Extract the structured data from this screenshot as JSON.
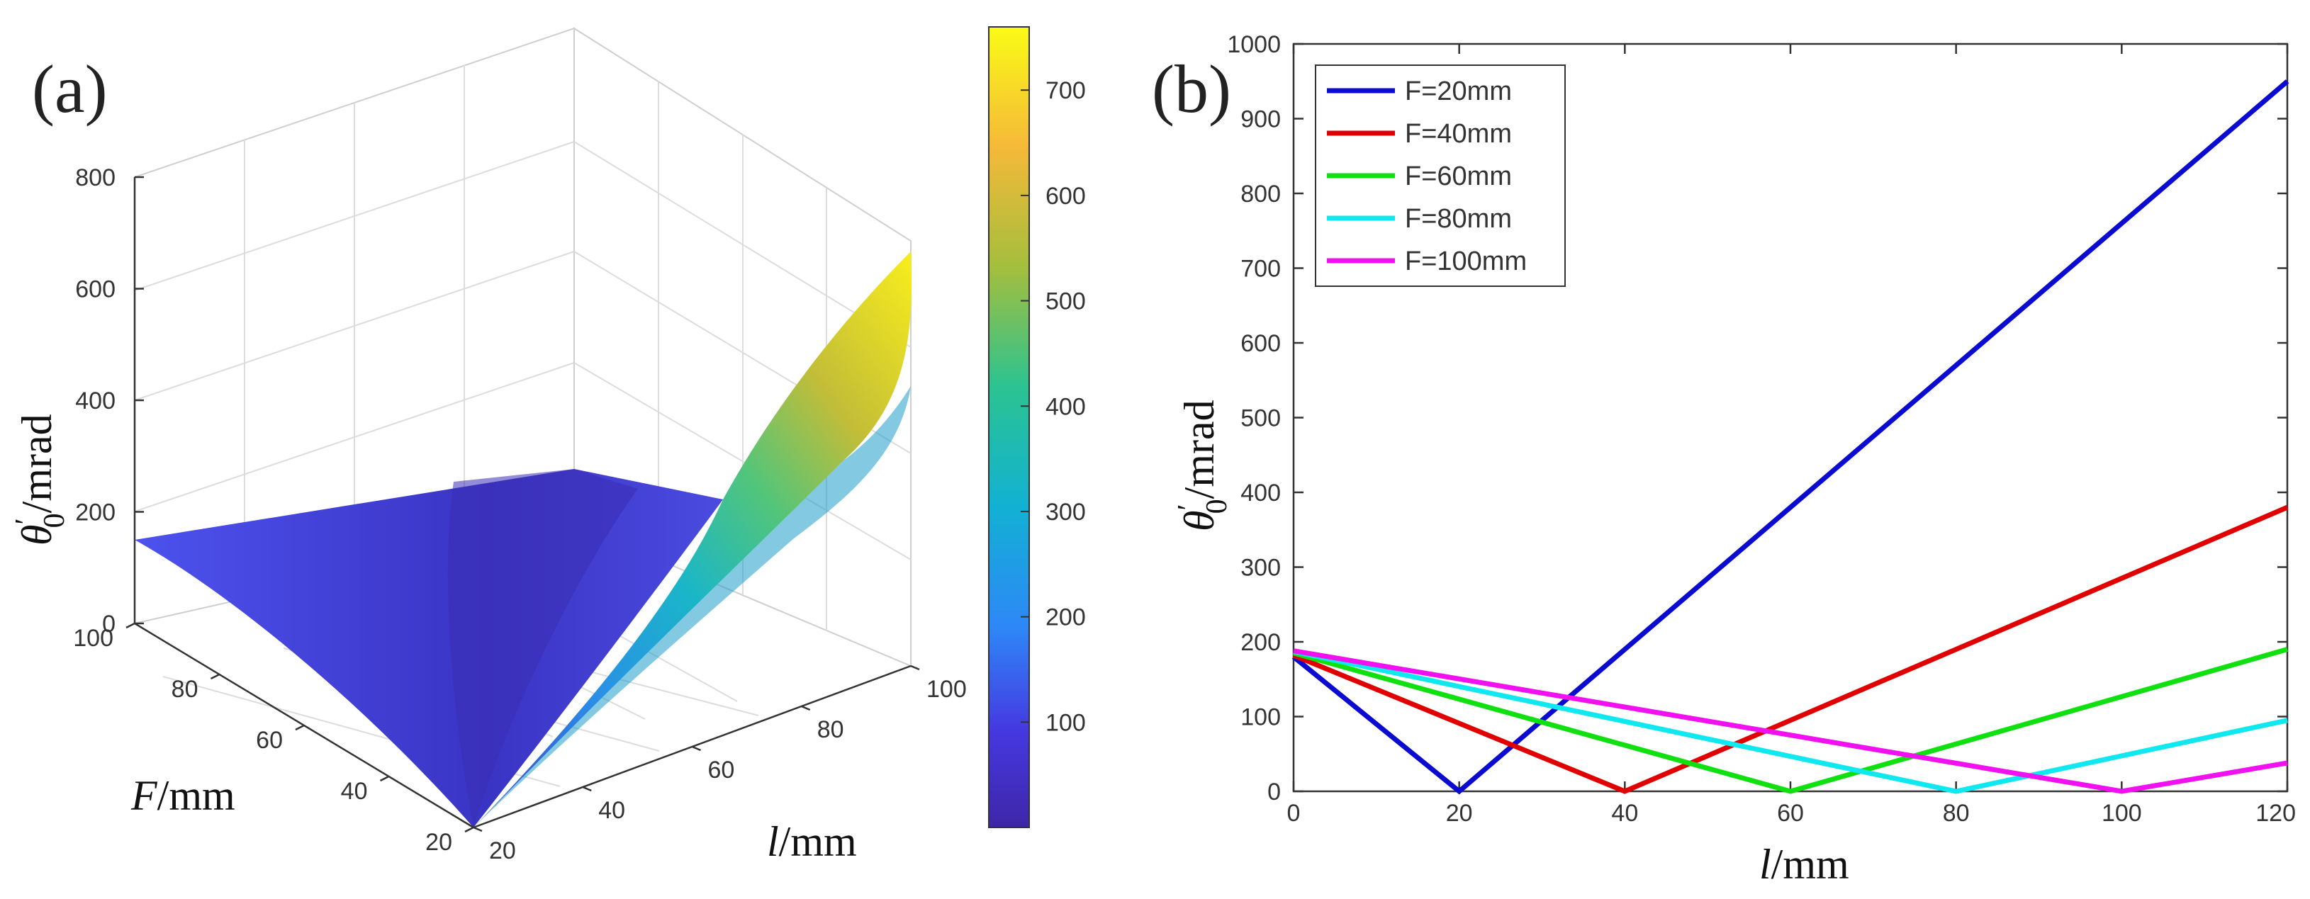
{
  "panel_a": {
    "label": "(a)",
    "axis_z": {
      "symbol": "θ",
      "sup": "′",
      "sub": "0",
      "unit": "/mrad"
    },
    "axis_f": {
      "symbol": "F",
      "unit": "/mm"
    },
    "axis_l": {
      "symbol": "l",
      "unit": "/mm"
    }
  },
  "panel_b": {
    "label": "(b)",
    "axis_y": {
      "symbol": "θ",
      "sup": "′",
      "sub": "0",
      "unit": "/mrad"
    },
    "axis_x": {
      "symbol": "l",
      "unit": "/mm"
    }
  },
  "chart_data": [
    {
      "type": "surface",
      "x_name": "l",
      "y_name": "F",
      "x_ticks": [
        20,
        40,
        60,
        80,
        100
      ],
      "y_ticks": [
        20,
        40,
        60,
        80,
        100
      ],
      "z_ticks": [
        0,
        200,
        400,
        600,
        800
      ],
      "xlim": [
        20,
        100
      ],
      "ylim": [
        20,
        100
      ],
      "zlim": [
        0,
        800
      ],
      "corner_values": [
        {
          "l": 20,
          "F": 20,
          "z": 0
        },
        {
          "l": 20,
          "F": 100,
          "z": 150
        },
        {
          "l": 100,
          "F": 100,
          "z": 0
        },
        {
          "l": 100,
          "F": 20,
          "z": 760
        }
      ],
      "colorbar": {
        "ticks": [
          100,
          200,
          300,
          400,
          500,
          600,
          700
        ],
        "range": [
          0,
          760
        ],
        "colormap": "parula"
      },
      "grid": true
    },
    {
      "type": "line",
      "xlim": [
        0,
        120
      ],
      "ylim": [
        0,
        1000
      ],
      "x_ticks": [
        0,
        20,
        40,
        60,
        80,
        100,
        120
      ],
      "x_tick_labels": [
        "0",
        "20",
        "40",
        "60",
        "80",
        "100",
        "120"
      ],
      "y_ticks": [
        0,
        100,
        200,
        300,
        400,
        500,
        600,
        700,
        800,
        900,
        1000
      ],
      "legend_position": "top-left",
      "series": [
        {
          "name": "F=20mm",
          "color": "#0a0ad0",
          "x": [
            0,
            20,
            120
          ],
          "y": [
            180,
            0,
            950
          ]
        },
        {
          "name": "F=40mm",
          "color": "#e00000",
          "x": [
            0,
            40,
            120
          ],
          "y": [
            182,
            0,
            380
          ]
        },
        {
          "name": "F=60mm",
          "color": "#10e010",
          "x": [
            0,
            60,
            120
          ],
          "y": [
            185,
            0,
            190
          ]
        },
        {
          "name": "F=80mm",
          "color": "#10e8f0",
          "x": [
            0,
            80,
            120
          ],
          "y": [
            187,
            0,
            95
          ]
        },
        {
          "name": "F=100mm",
          "color": "#f010f0",
          "x": [
            0,
            100,
            120
          ],
          "y": [
            188,
            0,
            38
          ]
        }
      ]
    }
  ]
}
